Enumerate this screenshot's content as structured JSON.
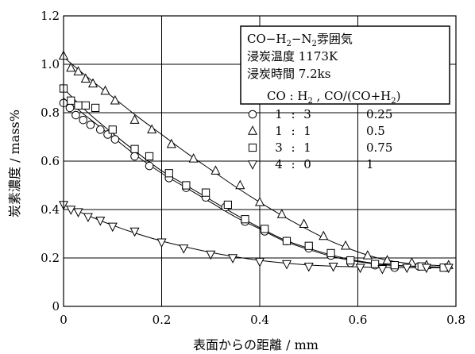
{
  "chart_data": {
    "type": "scatter",
    "xlabel": "表面からの距離 / mm",
    "ylabel": "炭素濃度 / mass%",
    "xlim": [
      0,
      0.8
    ],
    "ylim": [
      0,
      1.2
    ],
    "x_ticks": [
      "0",
      "0.2",
      "0.4",
      "0.6",
      "0.8"
    ],
    "y_ticks": [
      "0",
      "0.2",
      "0.4",
      "0.6",
      "0.8",
      "1.0",
      "1.2"
    ],
    "annotation": {
      "line1_main": "CO−H",
      "line1_sub1": "2",
      "line1_mid": "−N",
      "line1_sub2": "2",
      "line1_tail": "雰囲気",
      "line2": "浸炭温度 1173K",
      "line3": "浸炭時間 7.2ks"
    },
    "legend": {
      "header_main": "CO : H",
      "header_sub1": "2",
      "header_mid": " , CO/(CO+H",
      "header_sub2": "2",
      "header_tail": ")",
      "rows": [
        {
          "ratio_a": "1",
          "colon": ":",
          "ratio_b": "3",
          "value": "0.25"
        },
        {
          "ratio_a": "1",
          "colon": ":",
          "ratio_b": "1",
          "value": "0.5"
        },
        {
          "ratio_a": "3",
          "colon": ":",
          "ratio_b": "1",
          "value": "0.75"
        },
        {
          "ratio_a": "4",
          "colon": ":",
          "ratio_b": "0",
          "value": "1"
        }
      ]
    },
    "series": [
      {
        "marker": "circle",
        "legend_value": "0.25",
        "points": [
          [
            0,
            0.84
          ],
          [
            0.013,
            0.82
          ],
          [
            0.025,
            0.79
          ],
          [
            0.04,
            0.77
          ],
          [
            0.055,
            0.75
          ],
          [
            0.075,
            0.73
          ],
          [
            0.09,
            0.71
          ],
          [
            0.105,
            0.69
          ],
          [
            0.145,
            0.62
          ],
          [
            0.175,
            0.58
          ],
          [
            0.215,
            0.53
          ],
          [
            0.25,
            0.49
          ],
          [
            0.29,
            0.45
          ],
          [
            0.33,
            0.41
          ],
          [
            0.37,
            0.35
          ],
          [
            0.41,
            0.31
          ],
          [
            0.455,
            0.27
          ],
          [
            0.5,
            0.24
          ],
          [
            0.545,
            0.21
          ],
          [
            0.585,
            0.18
          ],
          [
            0.635,
            0.17
          ],
          [
            0.675,
            0.16
          ],
          [
            0.725,
            0.165
          ],
          [
            0.78,
            0.16
          ]
        ],
        "curve": [
          [
            0,
            0.86
          ],
          [
            0.05,
            0.78
          ],
          [
            0.1,
            0.7
          ],
          [
            0.15,
            0.62
          ],
          [
            0.2,
            0.55
          ],
          [
            0.25,
            0.49
          ],
          [
            0.3,
            0.43
          ],
          [
            0.35,
            0.37
          ],
          [
            0.4,
            0.32
          ],
          [
            0.45,
            0.27
          ],
          [
            0.5,
            0.235
          ],
          [
            0.55,
            0.205
          ],
          [
            0.6,
            0.185
          ],
          [
            0.65,
            0.172
          ],
          [
            0.7,
            0.166
          ],
          [
            0.75,
            0.163
          ],
          [
            0.79,
            0.162
          ]
        ]
      },
      {
        "marker": "triangle-up",
        "legend_value": "0.5",
        "points": [
          [
            0,
            1.035
          ],
          [
            0.015,
            0.985
          ],
          [
            0.03,
            0.97
          ],
          [
            0.045,
            0.94
          ],
          [
            0.06,
            0.92
          ],
          [
            0.085,
            0.89
          ],
          [
            0.105,
            0.85
          ],
          [
            0.145,
            0.77
          ],
          [
            0.18,
            0.73
          ],
          [
            0.22,
            0.67
          ],
          [
            0.265,
            0.61
          ],
          [
            0.31,
            0.56
          ],
          [
            0.36,
            0.5
          ],
          [
            0.4,
            0.43
          ],
          [
            0.445,
            0.38
          ],
          [
            0.49,
            0.34
          ],
          [
            0.53,
            0.29
          ],
          [
            0.575,
            0.25
          ],
          [
            0.62,
            0.21
          ],
          [
            0.66,
            0.19
          ],
          [
            0.71,
            0.18
          ],
          [
            0.74,
            0.17
          ],
          [
            0.785,
            0.17
          ]
        ],
        "curve": [
          [
            0,
            1.03
          ],
          [
            0.05,
            0.945
          ],
          [
            0.1,
            0.865
          ],
          [
            0.15,
            0.785
          ],
          [
            0.2,
            0.71
          ],
          [
            0.25,
            0.635
          ],
          [
            0.3,
            0.565
          ],
          [
            0.35,
            0.495
          ],
          [
            0.4,
            0.43
          ],
          [
            0.45,
            0.37
          ],
          [
            0.5,
            0.315
          ],
          [
            0.55,
            0.265
          ],
          [
            0.6,
            0.225
          ],
          [
            0.65,
            0.195
          ],
          [
            0.7,
            0.178
          ],
          [
            0.75,
            0.17
          ],
          [
            0.79,
            0.168
          ]
        ]
      },
      {
        "marker": "square",
        "legend_value": "0.75",
        "points": [
          [
            0,
            0.9
          ],
          [
            0.015,
            0.85
          ],
          [
            0.03,
            0.83
          ],
          [
            0.045,
            0.83
          ],
          [
            0.065,
            0.82
          ],
          [
            0.1,
            0.73
          ],
          [
            0.145,
            0.65
          ],
          [
            0.175,
            0.62
          ],
          [
            0.215,
            0.55
          ],
          [
            0.25,
            0.5
          ],
          [
            0.29,
            0.47
          ],
          [
            0.335,
            0.42
          ],
          [
            0.37,
            0.36
          ],
          [
            0.41,
            0.32
          ],
          [
            0.455,
            0.27
          ],
          [
            0.5,
            0.25
          ],
          [
            0.545,
            0.22
          ],
          [
            0.585,
            0.19
          ],
          [
            0.635,
            0.175
          ],
          [
            0.675,
            0.17
          ],
          [
            0.73,
            0.165
          ],
          [
            0.775,
            0.16
          ]
        ],
        "curve": [
          [
            0,
            0.9
          ],
          [
            0.05,
            0.8
          ],
          [
            0.1,
            0.715
          ],
          [
            0.15,
            0.635
          ],
          [
            0.2,
            0.56
          ],
          [
            0.25,
            0.5
          ],
          [
            0.3,
            0.44
          ],
          [
            0.35,
            0.38
          ],
          [
            0.4,
            0.325
          ],
          [
            0.45,
            0.275
          ],
          [
            0.5,
            0.24
          ],
          [
            0.55,
            0.21
          ],
          [
            0.6,
            0.188
          ],
          [
            0.65,
            0.174
          ],
          [
            0.7,
            0.167
          ],
          [
            0.75,
            0.163
          ],
          [
            0.79,
            0.162
          ]
        ]
      },
      {
        "marker": "triangle-down",
        "legend_value": "1",
        "points": [
          [
            0,
            0.42
          ],
          [
            0.015,
            0.4
          ],
          [
            0.03,
            0.39
          ],
          [
            0.05,
            0.37
          ],
          [
            0.075,
            0.355
          ],
          [
            0.1,
            0.33
          ],
          [
            0.145,
            0.31
          ],
          [
            0.2,
            0.265
          ],
          [
            0.245,
            0.24
          ],
          [
            0.3,
            0.215
          ],
          [
            0.345,
            0.2
          ],
          [
            0.4,
            0.185
          ],
          [
            0.455,
            0.175
          ],
          [
            0.5,
            0.165
          ],
          [
            0.55,
            0.165
          ],
          [
            0.605,
            0.16
          ],
          [
            0.65,
            0.155
          ],
          [
            0.7,
            0.16
          ],
          [
            0.74,
            0.16
          ],
          [
            0.785,
            0.16
          ]
        ],
        "curve": [
          [
            0,
            0.42
          ],
          [
            0.05,
            0.375
          ],
          [
            0.1,
            0.335
          ],
          [
            0.15,
            0.3
          ],
          [
            0.2,
            0.27
          ],
          [
            0.25,
            0.245
          ],
          [
            0.3,
            0.223
          ],
          [
            0.35,
            0.205
          ],
          [
            0.4,
            0.19
          ],
          [
            0.45,
            0.179
          ],
          [
            0.5,
            0.171
          ],
          [
            0.55,
            0.166
          ],
          [
            0.6,
            0.163
          ],
          [
            0.65,
            0.161
          ],
          [
            0.7,
            0.16
          ],
          [
            0.75,
            0.16
          ],
          [
            0.79,
            0.16
          ]
        ]
      }
    ]
  }
}
